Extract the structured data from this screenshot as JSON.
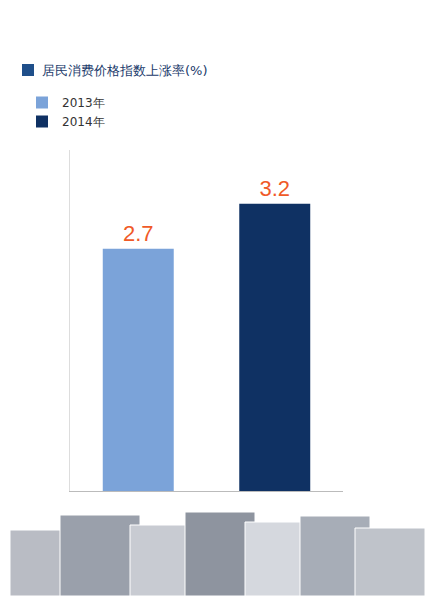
{
  "chart_data": {
    "type": "bar",
    "title": "居民消费价格指数上涨率(%)",
    "categories": [
      "2013年",
      "2014年"
    ],
    "values": [
      2.7,
      3.2
    ],
    "colors": [
      "#7ba3d9",
      "#0f3163"
    ],
    "ylim": [
      0,
      3.8
    ],
    "data_labels": true,
    "tick_labels": false,
    "legend": "top left",
    "grid": false
  }
}
